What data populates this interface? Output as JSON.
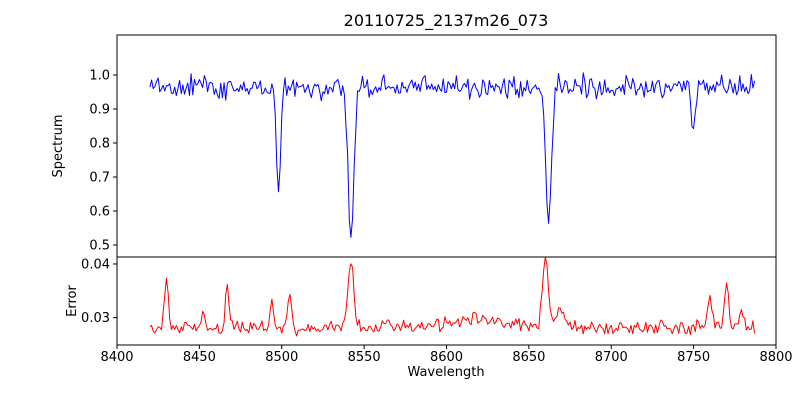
{
  "figure": {
    "background": "#ffffff",
    "frame_color": "#000000"
  },
  "chart_data": {
    "type": "line",
    "title": "20110725_2137m26_073",
    "xlabel": "Wavelength",
    "grid": false,
    "legend": null,
    "xlim": [
      8400,
      8800
    ],
    "x_ticks": [
      8400,
      8450,
      8500,
      8550,
      8600,
      8650,
      8700,
      8750,
      8800
    ],
    "x_tick_labels": [
      "8400",
      "8450",
      "8500",
      "8550",
      "8600",
      "8650",
      "8700",
      "8750",
      "8800"
    ],
    "x_start": 8420,
    "x_end": 8787,
    "x_step": 1,
    "seed": 20110725,
    "subplots": [
      {
        "name": "spectrum",
        "ylabel": "Spectrum",
        "color": "#0000ff",
        "ylim": [
          0.4647,
          1.1176
        ],
        "y_ticks": [
          0.5,
          0.6,
          0.7,
          0.8,
          0.9,
          1.0
        ],
        "y_tick_labels": [
          "0.5",
          "0.6",
          "0.7",
          "0.8",
          "0.9",
          "1.0"
        ],
        "baseline": 0.965,
        "noise": 0.032,
        "features": [
          {
            "center": 8498,
            "amp": -0.295,
            "sigma": 1.2
          },
          {
            "center": 8542,
            "amp": -0.47,
            "sigma": 1.7
          },
          {
            "center": 8662,
            "amp": -0.425,
            "sigma": 1.7
          },
          {
            "center": 8750,
            "amp": -0.125,
            "sigma": 1.3
          }
        ]
      },
      {
        "name": "error",
        "ylabel": "Error",
        "color": "#ff0000",
        "ylim": [
          0.0249,
          0.0413
        ],
        "y_ticks": [
          0.03,
          0.04
        ],
        "y_tick_labels": [
          "0.03",
          "0.04"
        ],
        "baseline": 0.028,
        "noise": 0.0013,
        "features": [
          {
            "center": 8430,
            "amp": 0.0088,
            "sigma": 1.2
          },
          {
            "center": 8452,
            "amp": 0.0032,
            "sigma": 1.1
          },
          {
            "center": 8467,
            "amp": 0.008,
            "sigma": 1.2
          },
          {
            "center": 8494,
            "amp": 0.0045,
            "sigma": 1.1
          },
          {
            "center": 8505,
            "amp": 0.0062,
            "sigma": 1.2
          },
          {
            "center": 8542,
            "amp": 0.0122,
            "sigma": 1.8
          },
          {
            "center": 8563,
            "amp": 0.0018,
            "sigma": 3
          },
          {
            "center": 8620,
            "amp": 0.0018,
            "sigma": 16
          },
          {
            "center": 8660,
            "amp": 0.0126,
            "sigma": 1.8
          },
          {
            "center": 8669,
            "amp": 0.0032,
            "sigma": 2.5
          },
          {
            "center": 8760,
            "amp": 0.0058,
            "sigma": 1.3
          },
          {
            "center": 8770,
            "amp": 0.0082,
            "sigma": 1.3
          },
          {
            "center": 8779,
            "amp": 0.0036,
            "sigma": 1.2
          }
        ]
      }
    ]
  }
}
